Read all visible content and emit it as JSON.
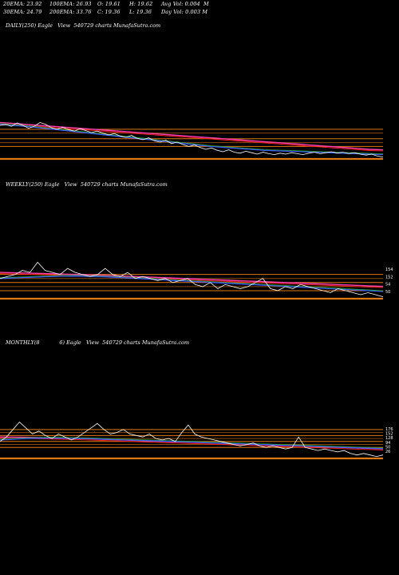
{
  "header": {
    "ema20": "20EMA: 23.92",
    "ema100": "100EMA: 26.93",
    "open": "O: 19.61",
    "high": "H: 19.62",
    "avgvol": "Avg Vol: 0.004  M",
    "ema30": "30EMA: 24.79",
    "ema200": "200EMA: 33.76",
    "close": "C: 19.36",
    "low": "L: 19.36",
    "dayvol": "Day Vol: 0.003 M"
  },
  "panels": [
    {
      "title": "DAILY(250) Eagle   View  540729 charts MunafaSutra.com"
    },
    {
      "title": "WEEKLY(250) Eagle   View  540729 charts MunafaSutra.com"
    },
    {
      "title": "MONTHLY(8            6) Eagle   View  540729 charts MunafaSutra.com"
    }
  ],
  "colors": {
    "price": "#ffffff",
    "ema_blue": "#3a5cff",
    "ema_pink": "#ff3fb0",
    "ema_red": "#ff2020",
    "ema_green": "#2aaa2a",
    "orange_band": "#e07a10",
    "orange_dark": "#8a4a08"
  },
  "chart_data": [
    {
      "type": "line",
      "name": "DAILY",
      "price": [
        31,
        31.2,
        30.8,
        31.5,
        31,
        30.4,
        30.8,
        31.6,
        31.2,
        30.5,
        30.2,
        30.6,
        30.1,
        29.8,
        30.3,
        29.9,
        29.5,
        29.8,
        29.4,
        29,
        29.3,
        28.8,
        28.5,
        28.9,
        28.3,
        28,
        28.4,
        27.8,
        27.5,
        27.9,
        27.2,
        27.5,
        27,
        26.6,
        26.9,
        26.4,
        26,
        26.3,
        25.8,
        25.5,
        25.9,
        25.4,
        25.2,
        25.6,
        25.3,
        25,
        25.4,
        25.1,
        24.9,
        25.2,
        25,
        25.3,
        25.1,
        24.9,
        25.2,
        25.4,
        25.1,
        25.3,
        25.5,
        25.2,
        25.4,
        25.1,
        25.3,
        25,
        24.8,
        25,
        24.6,
        24.4
      ],
      "ema_slow": [
        31.6,
        31.4,
        31.2,
        31,
        30.8,
        30.6,
        30.4,
        30.2,
        30,
        29.8,
        29.6,
        29.4,
        29.2,
        29,
        28.8,
        28.6,
        28.4,
        28.2,
        28,
        27.8,
        27.6,
        27.4,
        27.2,
        27,
        26.8,
        26.6,
        26.4,
        26.2,
        26,
        25.9
      ],
      "ema_fast": [
        31.2,
        31,
        30.8,
        30.5,
        30.2,
        29.9,
        29.6,
        29.3,
        29,
        28.7,
        28.4,
        28.1,
        27.8,
        27.5,
        27.2,
        26.9,
        26.6,
        26.4,
        26.2,
        26,
        25.8,
        25.7,
        25.6,
        25.5,
        25.4,
        25.3,
        25.2,
        25.1,
        25,
        24.9
      ],
      "levels": [
        30.2,
        29.4,
        28.2,
        27.4,
        26.6
      ]
    },
    {
      "type": "line",
      "name": "WEEKLY",
      "price": [
        26,
        27,
        28,
        30,
        29,
        34,
        30,
        29,
        28,
        31,
        29,
        28,
        27,
        28,
        31,
        28,
        27,
        29,
        26,
        27,
        26,
        25,
        26,
        24,
        25,
        26,
        23,
        22,
        24,
        21,
        23,
        22,
        21,
        22,
        24,
        26,
        21,
        20,
        22,
        21,
        23,
        22,
        21,
        20,
        19,
        21,
        20,
        19,
        18,
        19,
        18,
        17
      ],
      "ema_slow": [
        29,
        28.8,
        28.6,
        28.4,
        28.2,
        28,
        27.8,
        27.5,
        27.2,
        26.9,
        26.6,
        26.3,
        26,
        25.7,
        25.4,
        25.1,
        24.8,
        24.5,
        24.2,
        23.9,
        23.6,
        23.3,
        23,
        22.7,
        22.4,
        22.1
      ],
      "ema_fast": [
        26,
        26.3,
        26.6,
        26.9,
        27.1,
        27.2,
        27,
        26.8,
        26.4,
        26,
        25.6,
        25.2,
        24.8,
        24.4,
        24,
        23.6,
        23.2,
        22.8,
        22.4,
        22,
        21.6,
        21.2,
        20.8,
        20.4,
        20,
        19.6
      ],
      "levels": [
        28,
        26,
        24,
        22,
        20
      ],
      "ticks": [
        "154",
        "152",
        "54",
        "50"
      ]
    },
    {
      "type": "line",
      "name": "MONTHLY",
      "price": [
        25,
        28,
        33,
        38,
        34,
        30,
        32,
        29,
        27,
        30,
        28,
        26,
        28,
        31,
        34,
        37,
        33,
        30,
        31,
        33,
        30,
        29,
        28,
        30,
        27,
        26,
        27,
        25,
        31,
        36,
        30,
        28,
        27,
        26,
        25,
        24,
        23,
        22,
        23,
        24,
        22,
        21,
        22,
        21,
        20,
        21,
        28,
        21,
        20,
        19,
        20,
        19,
        18,
        19,
        17,
        16,
        17,
        16,
        15,
        16
      ],
      "ema_slow": [
        28,
        27.9,
        27.8,
        27.6,
        27.4,
        27.2,
        27,
        26.7,
        26.4,
        26.1,
        25.8,
        25.5,
        25.2,
        24.9,
        24.6,
        24.3,
        24,
        23.7,
        23.4,
        23.1,
        22.8,
        22.5,
        22.2,
        21.9,
        21.6,
        21.3,
        21,
        20.7,
        20.4,
        20.1
      ],
      "ema_fast": [
        26,
        26.5,
        27,
        27.2,
        27.3,
        27.2,
        27,
        26.8,
        26.5,
        26.2,
        25.9,
        25.6,
        25.3,
        25,
        24.7,
        24.4,
        24.1,
        23.8,
        23.5,
        23.2,
        22.9,
        22.6,
        22.3,
        22,
        21.7,
        21.4,
        21.1,
        20.8,
        20.5,
        20.2
      ],
      "levels": [
        33,
        31,
        29,
        27,
        25,
        23,
        21
      ],
      "ticks": [
        "176",
        "152",
        "128",
        "94",
        "50",
        "26"
      ]
    }
  ]
}
